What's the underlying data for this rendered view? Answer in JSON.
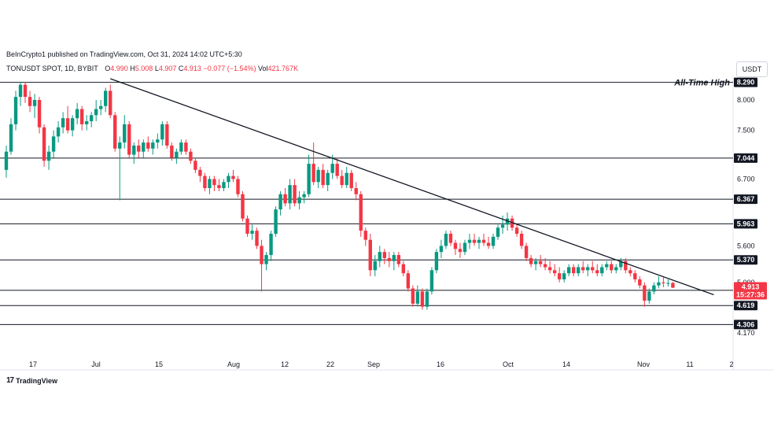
{
  "header": {
    "publisher": "BeInCrypto1 published on TradingView.com, Oct 31, 2024 14:02 UTC+5:30",
    "symbol": "TONUSDT SPOT, 1D, BYBIT",
    "open_label": "O",
    "open": "4.990",
    "high_label": "H",
    "high": "5.008",
    "low_label": "L",
    "low": "4.907",
    "close_label": "C",
    "close": "4.913",
    "change": "−0.077 (−1.54%)",
    "vol_label": "Vol",
    "vol": "421.767K"
  },
  "currency": "USDT",
  "brand": {
    "logo": "17",
    "name": "TradingView"
  },
  "colors": {
    "up": "#089981",
    "down": "#f23645",
    "line": "#131722",
    "price_tag": "#f23645"
  },
  "chart_data": {
    "type": "candlestick",
    "y_ticks": [
      "8.000",
      "7.500",
      "6.700",
      "5.600",
      "5.000",
      "4.170"
    ],
    "x_ticks": [
      "17",
      "Jul",
      "15",
      "Aug",
      "12",
      "22",
      "Sep",
      "16",
      "Oct",
      "14",
      "Nov",
      "11",
      "2"
    ],
    "levels": [
      {
        "value": 8.29,
        "label": "8.290",
        "annotation": "All-Time High"
      },
      {
        "value": 7.044,
        "label": "7.044"
      },
      {
        "value": 6.367,
        "label": "6.367"
      },
      {
        "value": 5.963,
        "label": "5.963"
      },
      {
        "value": 5.37,
        "label": "5.370"
      },
      {
        "value": 4.869,
        "label": "4.869"
      },
      {
        "value": 4.619,
        "label": "4.619"
      },
      {
        "value": 4.306,
        "label": "4.306"
      }
    ],
    "last_price": {
      "value": 4.913,
      "label": "4.913",
      "countdown": "15:27:36"
    },
    "trendline": {
      "start": {
        "date": "2024-07-04",
        "value": 8.35
      },
      "end": {
        "date": "2024-10-28",
        "value": 5.12
      }
    },
    "candles": [
      {
        "date": "2024-06-12",
        "o": 6.85,
        "h": 7.25,
        "l": 6.72,
        "c": 7.15
      },
      {
        "date": "2024-06-13",
        "o": 7.15,
        "h": 7.7,
        "l": 7.1,
        "c": 7.6
      },
      {
        "date": "2024-06-14",
        "o": 7.6,
        "h": 8.15,
        "l": 7.5,
        "c": 8.05
      },
      {
        "date": "2024-06-15",
        "o": 8.05,
        "h": 8.3,
        "l": 7.9,
        "c": 8.25
      },
      {
        "date": "2024-06-16",
        "o": 8.25,
        "h": 8.29,
        "l": 7.95,
        "c": 8.05
      },
      {
        "date": "2024-06-17",
        "o": 8.05,
        "h": 8.15,
        "l": 7.8,
        "c": 7.9
      },
      {
        "date": "2024-06-18",
        "o": 7.9,
        "h": 8.1,
        "l": 7.7,
        "c": 8.0
      },
      {
        "date": "2024-06-19",
        "o": 8.0,
        "h": 8.05,
        "l": 7.45,
        "c": 7.55
      },
      {
        "date": "2024-06-20",
        "o": 7.55,
        "h": 7.6,
        "l": 6.9,
        "c": 7.0
      },
      {
        "date": "2024-06-21",
        "o": 7.0,
        "h": 7.25,
        "l": 6.85,
        "c": 7.15
      },
      {
        "date": "2024-06-22",
        "o": 7.15,
        "h": 7.5,
        "l": 7.05,
        "c": 7.4
      },
      {
        "date": "2024-06-23",
        "o": 7.4,
        "h": 7.65,
        "l": 7.3,
        "c": 7.55
      },
      {
        "date": "2024-06-24",
        "o": 7.55,
        "h": 7.8,
        "l": 7.45,
        "c": 7.7
      },
      {
        "date": "2024-06-25",
        "o": 7.7,
        "h": 7.9,
        "l": 7.45,
        "c": 7.5
      },
      {
        "date": "2024-06-26",
        "o": 7.5,
        "h": 7.75,
        "l": 7.4,
        "c": 7.7
      },
      {
        "date": "2024-06-27",
        "o": 7.7,
        "h": 7.95,
        "l": 7.6,
        "c": 7.85
      },
      {
        "date": "2024-06-28",
        "o": 7.85,
        "h": 7.9,
        "l": 7.5,
        "c": 7.6
      },
      {
        "date": "2024-06-29",
        "o": 7.6,
        "h": 7.75,
        "l": 7.5,
        "c": 7.65
      },
      {
        "date": "2024-06-30",
        "o": 7.65,
        "h": 7.8,
        "l": 7.55,
        "c": 7.75
      },
      {
        "date": "2024-07-01",
        "o": 7.75,
        "h": 8.0,
        "l": 7.65,
        "c": 7.85
      },
      {
        "date": "2024-07-02",
        "o": 7.85,
        "h": 8.0,
        "l": 7.75,
        "c": 7.9
      },
      {
        "date": "2024-07-03",
        "o": 7.9,
        "h": 8.2,
        "l": 7.8,
        "c": 8.15
      },
      {
        "date": "2024-07-04",
        "o": 8.15,
        "h": 8.25,
        "l": 7.7,
        "c": 7.75
      },
      {
        "date": "2024-07-05",
        "o": 7.75,
        "h": 7.8,
        "l": 7.15,
        "c": 7.2
      },
      {
        "date": "2024-07-06",
        "o": 7.2,
        "h": 7.4,
        "l": 6.35,
        "c": 7.3
      },
      {
        "date": "2024-07-07",
        "o": 7.3,
        "h": 7.75,
        "l": 7.2,
        "c": 7.6
      },
      {
        "date": "2024-07-08",
        "o": 7.6,
        "h": 7.65,
        "l": 7.05,
        "c": 7.1
      },
      {
        "date": "2024-07-09",
        "o": 7.1,
        "h": 7.3,
        "l": 6.95,
        "c": 7.25
      },
      {
        "date": "2024-07-10",
        "o": 7.25,
        "h": 7.35,
        "l": 7.05,
        "c": 7.15
      },
      {
        "date": "2024-07-11",
        "o": 7.15,
        "h": 7.35,
        "l": 7.05,
        "c": 7.3
      },
      {
        "date": "2024-07-12",
        "o": 7.3,
        "h": 7.4,
        "l": 7.15,
        "c": 7.2
      },
      {
        "date": "2024-07-13",
        "o": 7.2,
        "h": 7.35,
        "l": 7.1,
        "c": 7.3
      },
      {
        "date": "2024-07-14",
        "o": 7.3,
        "h": 7.45,
        "l": 7.2,
        "c": 7.35
      },
      {
        "date": "2024-07-15",
        "o": 7.35,
        "h": 7.65,
        "l": 7.25,
        "c": 7.6
      },
      {
        "date": "2024-07-16",
        "o": 7.6,
        "h": 7.65,
        "l": 7.2,
        "c": 7.25
      },
      {
        "date": "2024-07-17",
        "o": 7.25,
        "h": 7.3,
        "l": 7.0,
        "c": 7.05
      },
      {
        "date": "2024-07-18",
        "o": 7.05,
        "h": 7.2,
        "l": 6.95,
        "c": 7.15
      },
      {
        "date": "2024-07-19",
        "o": 7.15,
        "h": 7.35,
        "l": 7.1,
        "c": 7.3
      },
      {
        "date": "2024-07-20",
        "o": 7.3,
        "h": 7.35,
        "l": 7.1,
        "c": 7.15
      },
      {
        "date": "2024-07-21",
        "o": 7.15,
        "h": 7.2,
        "l": 6.95,
        "c": 7.0
      },
      {
        "date": "2024-07-22",
        "o": 7.0,
        "h": 7.05,
        "l": 6.8,
        "c": 6.85
      },
      {
        "date": "2024-07-23",
        "o": 6.85,
        "h": 6.9,
        "l": 6.65,
        "c": 6.75
      },
      {
        "date": "2024-07-24",
        "o": 6.75,
        "h": 6.8,
        "l": 6.5,
        "c": 6.55
      },
      {
        "date": "2024-07-25",
        "o": 6.55,
        "h": 6.75,
        "l": 6.45,
        "c": 6.7
      },
      {
        "date": "2024-07-26",
        "o": 6.7,
        "h": 6.75,
        "l": 6.5,
        "c": 6.6
      },
      {
        "date": "2024-07-27",
        "o": 6.6,
        "h": 6.7,
        "l": 6.5,
        "c": 6.55
      },
      {
        "date": "2024-07-28",
        "o": 6.55,
        "h": 6.7,
        "l": 6.5,
        "c": 6.65
      },
      {
        "date": "2024-07-29",
        "o": 6.65,
        "h": 6.8,
        "l": 6.55,
        "c": 6.75
      },
      {
        "date": "2024-07-30",
        "o": 6.75,
        "h": 6.85,
        "l": 6.65,
        "c": 6.7
      },
      {
        "date": "2024-07-31",
        "o": 6.7,
        "h": 6.75,
        "l": 6.4,
        "c": 6.45
      },
      {
        "date": "2024-08-01",
        "o": 6.45,
        "h": 6.5,
        "l": 6.0,
        "c": 6.05
      },
      {
        "date": "2024-08-02",
        "o": 6.05,
        "h": 6.1,
        "l": 5.75,
        "c": 5.8
      },
      {
        "date": "2024-08-03",
        "o": 5.8,
        "h": 5.95,
        "l": 5.7,
        "c": 5.85
      },
      {
        "date": "2024-08-04",
        "o": 5.85,
        "h": 5.9,
        "l": 5.55,
        "c": 5.6
      },
      {
        "date": "2024-08-05",
        "o": 5.6,
        "h": 5.7,
        "l": 4.85,
        "c": 5.3
      },
      {
        "date": "2024-08-06",
        "o": 5.3,
        "h": 5.5,
        "l": 5.2,
        "c": 5.45
      },
      {
        "date": "2024-08-07",
        "o": 5.45,
        "h": 5.85,
        "l": 5.35,
        "c": 5.8
      },
      {
        "date": "2024-08-08",
        "o": 5.8,
        "h": 6.25,
        "l": 5.75,
        "c": 6.2
      },
      {
        "date": "2024-08-09",
        "o": 6.2,
        "h": 6.5,
        "l": 6.1,
        "c": 6.45
      },
      {
        "date": "2024-08-10",
        "o": 6.45,
        "h": 6.55,
        "l": 6.25,
        "c": 6.3
      },
      {
        "date": "2024-08-11",
        "o": 6.3,
        "h": 6.7,
        "l": 6.2,
        "c": 6.6
      },
      {
        "date": "2024-08-12",
        "o": 6.6,
        "h": 6.7,
        "l": 6.25,
        "c": 6.3
      },
      {
        "date": "2024-08-13",
        "o": 6.3,
        "h": 6.5,
        "l": 6.2,
        "c": 6.4
      },
      {
        "date": "2024-08-14",
        "o": 6.4,
        "h": 6.5,
        "l": 6.3,
        "c": 6.45
      },
      {
        "date": "2024-08-15",
        "o": 6.45,
        "h": 7.1,
        "l": 6.4,
        "c": 6.95
      },
      {
        "date": "2024-08-16",
        "o": 6.95,
        "h": 7.3,
        "l": 6.6,
        "c": 6.65
      },
      {
        "date": "2024-08-17",
        "o": 6.65,
        "h": 6.9,
        "l": 6.55,
        "c": 6.85
      },
      {
        "date": "2024-08-18",
        "o": 6.85,
        "h": 6.95,
        "l": 6.55,
        "c": 6.6
      },
      {
        "date": "2024-08-19",
        "o": 6.6,
        "h": 6.85,
        "l": 6.5,
        "c": 6.8
      },
      {
        "date": "2024-08-20",
        "o": 6.8,
        "h": 7.1,
        "l": 6.7,
        "c": 6.95
      },
      {
        "date": "2024-08-21",
        "o": 6.95,
        "h": 7.05,
        "l": 6.7,
        "c": 6.75
      },
      {
        "date": "2024-08-22",
        "o": 6.75,
        "h": 6.85,
        "l": 6.55,
        "c": 6.6
      },
      {
        "date": "2024-08-23",
        "o": 6.6,
        "h": 6.9,
        "l": 6.55,
        "c": 6.8
      },
      {
        "date": "2024-08-24",
        "o": 6.8,
        "h": 6.85,
        "l": 6.5,
        "c": 6.55
      },
      {
        "date": "2024-08-25",
        "o": 6.55,
        "h": 6.65,
        "l": 6.35,
        "c": 6.45
      },
      {
        "date": "2024-08-26",
        "o": 6.45,
        "h": 6.5,
        "l": 5.75,
        "c": 5.85
      },
      {
        "date": "2024-08-27",
        "o": 5.85,
        "h": 5.9,
        "l": 5.6,
        "c": 5.7
      },
      {
        "date": "2024-08-28",
        "o": 5.7,
        "h": 5.8,
        "l": 5.1,
        "c": 5.2
      },
      {
        "date": "2024-08-29",
        "o": 5.2,
        "h": 5.45,
        "l": 5.1,
        "c": 5.35
      },
      {
        "date": "2024-08-30",
        "o": 5.35,
        "h": 5.6,
        "l": 5.25,
        "c": 5.5
      },
      {
        "date": "2024-08-31",
        "o": 5.5,
        "h": 5.55,
        "l": 5.3,
        "c": 5.4
      },
      {
        "date": "2024-09-01",
        "o": 5.4,
        "h": 5.5,
        "l": 5.25,
        "c": 5.35
      },
      {
        "date": "2024-09-02",
        "o": 5.35,
        "h": 5.5,
        "l": 5.2,
        "c": 5.45
      },
      {
        "date": "2024-09-03",
        "o": 5.45,
        "h": 5.5,
        "l": 5.25,
        "c": 5.3
      },
      {
        "date": "2024-09-04",
        "o": 5.3,
        "h": 5.35,
        "l": 5.1,
        "c": 5.15
      },
      {
        "date": "2024-09-05",
        "o": 5.15,
        "h": 5.2,
        "l": 4.85,
        "c": 4.9
      },
      {
        "date": "2024-09-06",
        "o": 4.9,
        "h": 4.95,
        "l": 4.6,
        "c": 4.65
      },
      {
        "date": "2024-09-07",
        "o": 4.65,
        "h": 4.95,
        "l": 4.6,
        "c": 4.85
      },
      {
        "date": "2024-09-08",
        "o": 4.85,
        "h": 4.9,
        "l": 4.55,
        "c": 4.6
      },
      {
        "date": "2024-09-09",
        "o": 4.6,
        "h": 4.9,
        "l": 4.55,
        "c": 4.85
      },
      {
        "date": "2024-09-10",
        "o": 4.85,
        "h": 5.25,
        "l": 4.8,
        "c": 5.2
      },
      {
        "date": "2024-09-11",
        "o": 5.2,
        "h": 5.55,
        "l": 5.15,
        "c": 5.5
      },
      {
        "date": "2024-09-12",
        "o": 5.5,
        "h": 5.7,
        "l": 5.4,
        "c": 5.6
      },
      {
        "date": "2024-09-13",
        "o": 5.6,
        "h": 5.85,
        "l": 5.55,
        "c": 5.8
      },
      {
        "date": "2024-09-14",
        "o": 5.8,
        "h": 5.85,
        "l": 5.6,
        "c": 5.65
      },
      {
        "date": "2024-09-15",
        "o": 5.65,
        "h": 5.7,
        "l": 5.45,
        "c": 5.55
      },
      {
        "date": "2024-09-16",
        "o": 5.55,
        "h": 5.65,
        "l": 5.4,
        "c": 5.5
      },
      {
        "date": "2024-09-17",
        "o": 5.5,
        "h": 5.7,
        "l": 5.45,
        "c": 5.65
      },
      {
        "date": "2024-09-18",
        "o": 5.65,
        "h": 5.8,
        "l": 5.55,
        "c": 5.7
      },
      {
        "date": "2024-09-19",
        "o": 5.7,
        "h": 5.8,
        "l": 5.6,
        "c": 5.65
      },
      {
        "date": "2024-09-20",
        "o": 5.65,
        "h": 5.75,
        "l": 5.55,
        "c": 5.7
      },
      {
        "date": "2024-09-21",
        "o": 5.7,
        "h": 5.8,
        "l": 5.6,
        "c": 5.65
      },
      {
        "date": "2024-09-22",
        "o": 5.65,
        "h": 5.75,
        "l": 5.55,
        "c": 5.6
      },
      {
        "date": "2024-09-23",
        "o": 5.6,
        "h": 5.8,
        "l": 5.55,
        "c": 5.75
      },
      {
        "date": "2024-09-24",
        "o": 5.75,
        "h": 5.95,
        "l": 5.7,
        "c": 5.9
      },
      {
        "date": "2024-09-25",
        "o": 5.9,
        "h": 6.1,
        "l": 5.8,
        "c": 5.95
      },
      {
        "date": "2024-09-26",
        "o": 5.95,
        "h": 6.15,
        "l": 5.85,
        "c": 6.05
      },
      {
        "date": "2024-09-27",
        "o": 6.05,
        "h": 6.1,
        "l": 5.85,
        "c": 5.9
      },
      {
        "date": "2024-09-28",
        "o": 5.9,
        "h": 5.95,
        "l": 5.75,
        "c": 5.8
      },
      {
        "date": "2024-09-29",
        "o": 5.8,
        "h": 5.85,
        "l": 5.55,
        "c": 5.6
      },
      {
        "date": "2024-09-30",
        "o": 5.6,
        "h": 5.65,
        "l": 5.35,
        "c": 5.4
      },
      {
        "date": "2024-10-01",
        "o": 5.4,
        "h": 5.45,
        "l": 5.25,
        "c": 5.3
      },
      {
        "date": "2024-10-02",
        "o": 5.3,
        "h": 5.4,
        "l": 5.2,
        "c": 5.35
      },
      {
        "date": "2024-10-03",
        "o": 5.35,
        "h": 5.45,
        "l": 5.25,
        "c": 5.3
      },
      {
        "date": "2024-10-04",
        "o": 5.3,
        "h": 5.4,
        "l": 5.2,
        "c": 5.25
      },
      {
        "date": "2024-10-05",
        "o": 5.25,
        "h": 5.35,
        "l": 5.15,
        "c": 5.2
      },
      {
        "date": "2024-10-06",
        "o": 5.2,
        "h": 5.3,
        "l": 5.1,
        "c": 5.15
      },
      {
        "date": "2024-10-07",
        "o": 5.15,
        "h": 5.25,
        "l": 5.0,
        "c": 5.05
      },
      {
        "date": "2024-10-08",
        "o": 5.05,
        "h": 5.2,
        "l": 5.0,
        "c": 5.15
      },
      {
        "date": "2024-10-09",
        "o": 5.15,
        "h": 5.3,
        "l": 5.1,
        "c": 5.25
      },
      {
        "date": "2024-10-10",
        "o": 5.25,
        "h": 5.3,
        "l": 5.1,
        "c": 5.15
      },
      {
        "date": "2024-10-11",
        "o": 5.15,
        "h": 5.3,
        "l": 5.1,
        "c": 5.25
      },
      {
        "date": "2024-10-12",
        "o": 5.25,
        "h": 5.35,
        "l": 5.15,
        "c": 5.2
      },
      {
        "date": "2024-10-13",
        "o": 5.2,
        "h": 5.3,
        "l": 5.1,
        "c": 5.25
      },
      {
        "date": "2024-10-14",
        "o": 5.25,
        "h": 5.35,
        "l": 5.15,
        "c": 5.2
      },
      {
        "date": "2024-10-15",
        "o": 5.2,
        "h": 5.3,
        "l": 5.1,
        "c": 5.15
      },
      {
        "date": "2024-10-16",
        "o": 5.15,
        "h": 5.3,
        "l": 5.1,
        "c": 5.25
      },
      {
        "date": "2024-10-17",
        "o": 5.25,
        "h": 5.35,
        "l": 5.2,
        "c": 5.3
      },
      {
        "date": "2024-10-18",
        "o": 5.3,
        "h": 5.35,
        "l": 5.15,
        "c": 5.2
      },
      {
        "date": "2024-10-19",
        "o": 5.2,
        "h": 5.3,
        "l": 5.15,
        "c": 5.25
      },
      {
        "date": "2024-10-20",
        "o": 5.25,
        "h": 5.4,
        "l": 5.2,
        "c": 5.35
      },
      {
        "date": "2024-10-21",
        "o": 5.35,
        "h": 5.4,
        "l": 5.15,
        "c": 5.2
      },
      {
        "date": "2024-10-22",
        "o": 5.2,
        "h": 5.25,
        "l": 5.1,
        "c": 5.15
      },
      {
        "date": "2024-10-23",
        "o": 5.15,
        "h": 5.2,
        "l": 5.0,
        "c": 5.05
      },
      {
        "date": "2024-10-24",
        "o": 5.05,
        "h": 5.1,
        "l": 4.9,
        "c": 4.95
      },
      {
        "date": "2024-10-25",
        "o": 4.95,
        "h": 5.0,
        "l": 4.6,
        "c": 4.7
      },
      {
        "date": "2024-10-26",
        "o": 4.7,
        "h": 4.9,
        "l": 4.65,
        "c": 4.85
      },
      {
        "date": "2024-10-27",
        "o": 4.85,
        "h": 5.0,
        "l": 4.8,
        "c": 4.95
      },
      {
        "date": "2024-10-28",
        "o": 4.95,
        "h": 5.1,
        "l": 4.9,
        "c": 5.0
      },
      {
        "date": "2024-10-29",
        "o": 5.0,
        "h": 5.08,
        "l": 4.92,
        "c": 4.99
      },
      {
        "date": "2024-10-30",
        "o": 4.99,
        "h": 5.05,
        "l": 4.93,
        "c": 4.99
      },
      {
        "date": "2024-10-31",
        "o": 4.99,
        "h": 5.008,
        "l": 4.907,
        "c": 4.913
      }
    ]
  }
}
